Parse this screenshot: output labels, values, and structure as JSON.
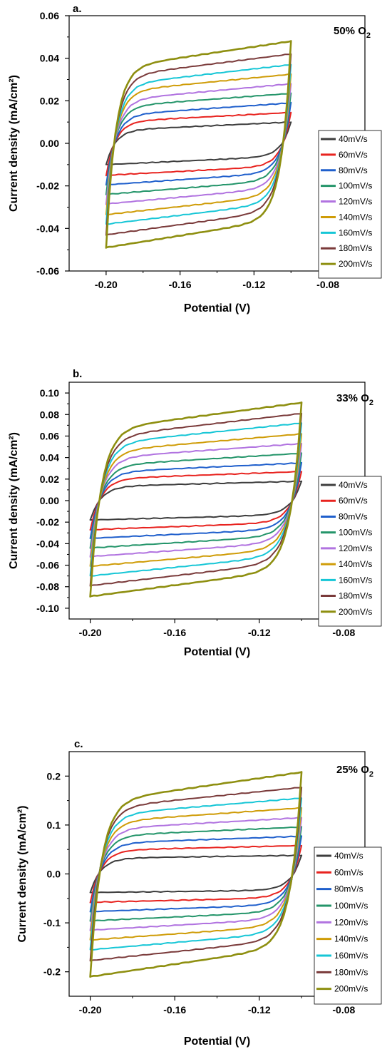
{
  "chart_data": [
    {
      "type": "line",
      "panel_label": "a.",
      "condition": {
        "text": "50% O",
        "subscript": "2"
      },
      "xlabel": "Potential (V)",
      "ylabel": "Current density (mA/cm²)",
      "xlim": [
        -0.22,
        -0.06
      ],
      "ylim": [
        -0.06,
        0.06
      ],
      "xticks": [
        -0.2,
        -0.16,
        -0.12,
        -0.08
      ],
      "xtick_labels": [
        "-0.20",
        "-0.16",
        "-0.12",
        "-0.08"
      ],
      "yticks": [
        -0.06,
        -0.04,
        -0.02,
        0.0,
        0.02,
        0.04,
        0.06
      ],
      "ytick_labels": [
        "-0.06",
        "-0.04",
        "-0.02",
        "0.00",
        "0.02",
        "0.04",
        "0.06"
      ],
      "x_range": [
        -0.2,
        -0.1
      ],
      "legend_position": "right",
      "series": [
        {
          "name": "40mV/s",
          "color": "#3d3d3d",
          "upper": [
            0.006,
            0.01
          ],
          "lower": [
            -0.01,
            -0.006
          ]
        },
        {
          "name": "60mV/s",
          "color": "#e8231f",
          "upper": [
            0.01,
            0.0145
          ],
          "lower": [
            -0.015,
            -0.0105
          ]
        },
        {
          "name": "80mV/s",
          "color": "#1f5fcc",
          "upper": [
            0.013,
            0.019
          ],
          "lower": [
            -0.0195,
            -0.0135
          ]
        },
        {
          "name": "100mV/s",
          "color": "#24956a",
          "upper": [
            0.017,
            0.0235
          ],
          "lower": [
            -0.024,
            -0.017
          ]
        },
        {
          "name": "120mV/s",
          "color": "#b173e0",
          "upper": [
            0.02,
            0.028
          ],
          "lower": [
            -0.0285,
            -0.0205
          ]
        },
        {
          "name": "140mV/s",
          "color": "#cf9c07",
          "upper": [
            0.024,
            0.0325
          ],
          "lower": [
            -0.0335,
            -0.024
          ]
        },
        {
          "name": "160mV/s",
          "color": "#16c6d6",
          "upper": [
            0.027,
            0.037
          ],
          "lower": [
            -0.038,
            -0.0275
          ]
        },
        {
          "name": "180mV/s",
          "color": "#7a3a3a",
          "upper": [
            0.031,
            0.042
          ],
          "lower": [
            -0.043,
            -0.031
          ]
        },
        {
          "name": "200mV/s",
          "color": "#8e8f10",
          "upper": [
            0.035,
            0.048
          ],
          "lower": [
            -0.049,
            -0.035
          ]
        }
      ]
    },
    {
      "type": "line",
      "panel_label": "b.",
      "condition": {
        "text": "33% O",
        "subscript": "2"
      },
      "xlabel": "Potential (V)",
      "ylabel": "Current density (mA/cm²)",
      "xlim": [
        -0.21,
        -0.07
      ],
      "ylim": [
        -0.11,
        0.11
      ],
      "xticks": [
        -0.2,
        -0.16,
        -0.12,
        -0.08
      ],
      "xtick_labels": [
        "-0.20",
        "-0.16",
        "-0.12",
        "-0.08"
      ],
      "yticks": [
        -0.1,
        -0.08,
        -0.06,
        -0.04,
        -0.02,
        0.0,
        0.02,
        0.04,
        0.06,
        0.08,
        0.1
      ],
      "ytick_labels": [
        "-0.10",
        "-0.08",
        "-0.06",
        "-0.04",
        "-0.02",
        "0.00",
        "0.02",
        "0.04",
        "0.06",
        "0.08",
        "0.10"
      ],
      "x_range": [
        -0.2,
        -0.1
      ],
      "legend_position": "right",
      "series": [
        {
          "name": "40mV/s",
          "color": "#3d3d3d",
          "upper": [
            0.013,
            0.018
          ],
          "lower": [
            -0.018,
            -0.013
          ]
        },
        {
          "name": "60mV/s",
          "color": "#e8231f",
          "upper": [
            0.02,
            0.027
          ],
          "lower": [
            -0.027,
            -0.02
          ]
        },
        {
          "name": "80mV/s",
          "color": "#1f5fcc",
          "upper": [
            0.026,
            0.035
          ],
          "lower": [
            -0.035,
            -0.026
          ]
        },
        {
          "name": "100mV/s",
          "color": "#24956a",
          "upper": [
            0.032,
            0.044
          ],
          "lower": [
            -0.044,
            -0.032
          ]
        },
        {
          "name": "120mV/s",
          "color": "#b173e0",
          "upper": [
            0.039,
            0.053
          ],
          "lower": [
            -0.052,
            -0.038
          ]
        },
        {
          "name": "140mV/s",
          "color": "#cf9c07",
          "upper": [
            0.045,
            0.062
          ],
          "lower": [
            -0.061,
            -0.044
          ]
        },
        {
          "name": "160mV/s",
          "color": "#16c6d6",
          "upper": [
            0.052,
            0.072
          ],
          "lower": [
            -0.07,
            -0.05
          ]
        },
        {
          "name": "180mV/s",
          "color": "#7a3a3a",
          "upper": [
            0.058,
            0.081
          ],
          "lower": [
            -0.079,
            -0.056
          ]
        },
        {
          "name": "200mV/s",
          "color": "#8e8f10",
          "upper": [
            0.065,
            0.091
          ],
          "lower": [
            -0.089,
            -0.063
          ]
        }
      ]
    },
    {
      "type": "line",
      "panel_label": "c.",
      "condition": {
        "text": "25% O",
        "subscript": "2"
      },
      "xlabel": "Potential (V)",
      "ylabel": "Current density (mA/cm²)",
      "xlim": [
        -0.21,
        -0.07
      ],
      "ylim": [
        -0.25,
        0.25
      ],
      "xticks": [
        -0.2,
        -0.16,
        -0.12,
        -0.08
      ],
      "xtick_labels": [
        "-0.20",
        "-0.16",
        "-0.12",
        "-0.08"
      ],
      "yticks": [
        -0.2,
        -0.1,
        0.0,
        0.1,
        0.2
      ],
      "ytick_labels": [
        "-0.2",
        "-0.1",
        "0.0",
        "0.1",
        "0.2"
      ],
      "x_range": [
        -0.2,
        -0.1
      ],
      "legend_position": "right",
      "series": [
        {
          "name": "40mV/s",
          "color": "#3d3d3d",
          "upper": [
            0.032,
            0.038
          ],
          "lower": [
            -0.038,
            -0.033
          ]
        },
        {
          "name": "60mV/s",
          "color": "#e8231f",
          "upper": [
            0.048,
            0.058
          ],
          "lower": [
            -0.058,
            -0.048
          ]
        },
        {
          "name": "80mV/s",
          "color": "#1f5fcc",
          "upper": [
            0.062,
            0.077
          ],
          "lower": [
            -0.077,
            -0.062
          ]
        },
        {
          "name": "100mV/s",
          "color": "#24956a",
          "upper": [
            0.077,
            0.096
          ],
          "lower": [
            -0.096,
            -0.076
          ]
        },
        {
          "name": "120mV/s",
          "color": "#b173e0",
          "upper": [
            0.091,
            0.115
          ],
          "lower": [
            -0.115,
            -0.09
          ]
        },
        {
          "name": "140mV/s",
          "color": "#cf9c07",
          "upper": [
            0.105,
            0.135
          ],
          "lower": [
            -0.135,
            -0.104
          ]
        },
        {
          "name": "160mV/s",
          "color": "#16c6d6",
          "upper": [
            0.119,
            0.155
          ],
          "lower": [
            -0.155,
            -0.118
          ]
        },
        {
          "name": "180mV/s",
          "color": "#7a3a3a",
          "upper": [
            0.133,
            0.177
          ],
          "lower": [
            -0.177,
            -0.132
          ]
        },
        {
          "name": "200mV/s",
          "color": "#8e8f10",
          "upper": [
            0.146,
            0.208
          ],
          "lower": [
            -0.21,
            -0.146
          ]
        }
      ]
    }
  ]
}
